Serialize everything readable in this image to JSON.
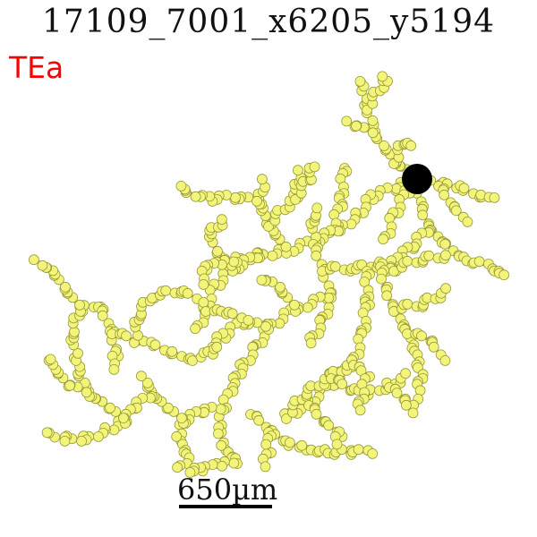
{
  "title": "17109_7001_x6205_y5194",
  "region": "TEa",
  "scale_label": "650µm",
  "colors": {
    "node_fill": "#f2f57a",
    "node_stroke": "#9a9a3a",
    "edge": "#f47c6b",
    "soma": "#000000",
    "region_text": "#ff0000"
  }
}
